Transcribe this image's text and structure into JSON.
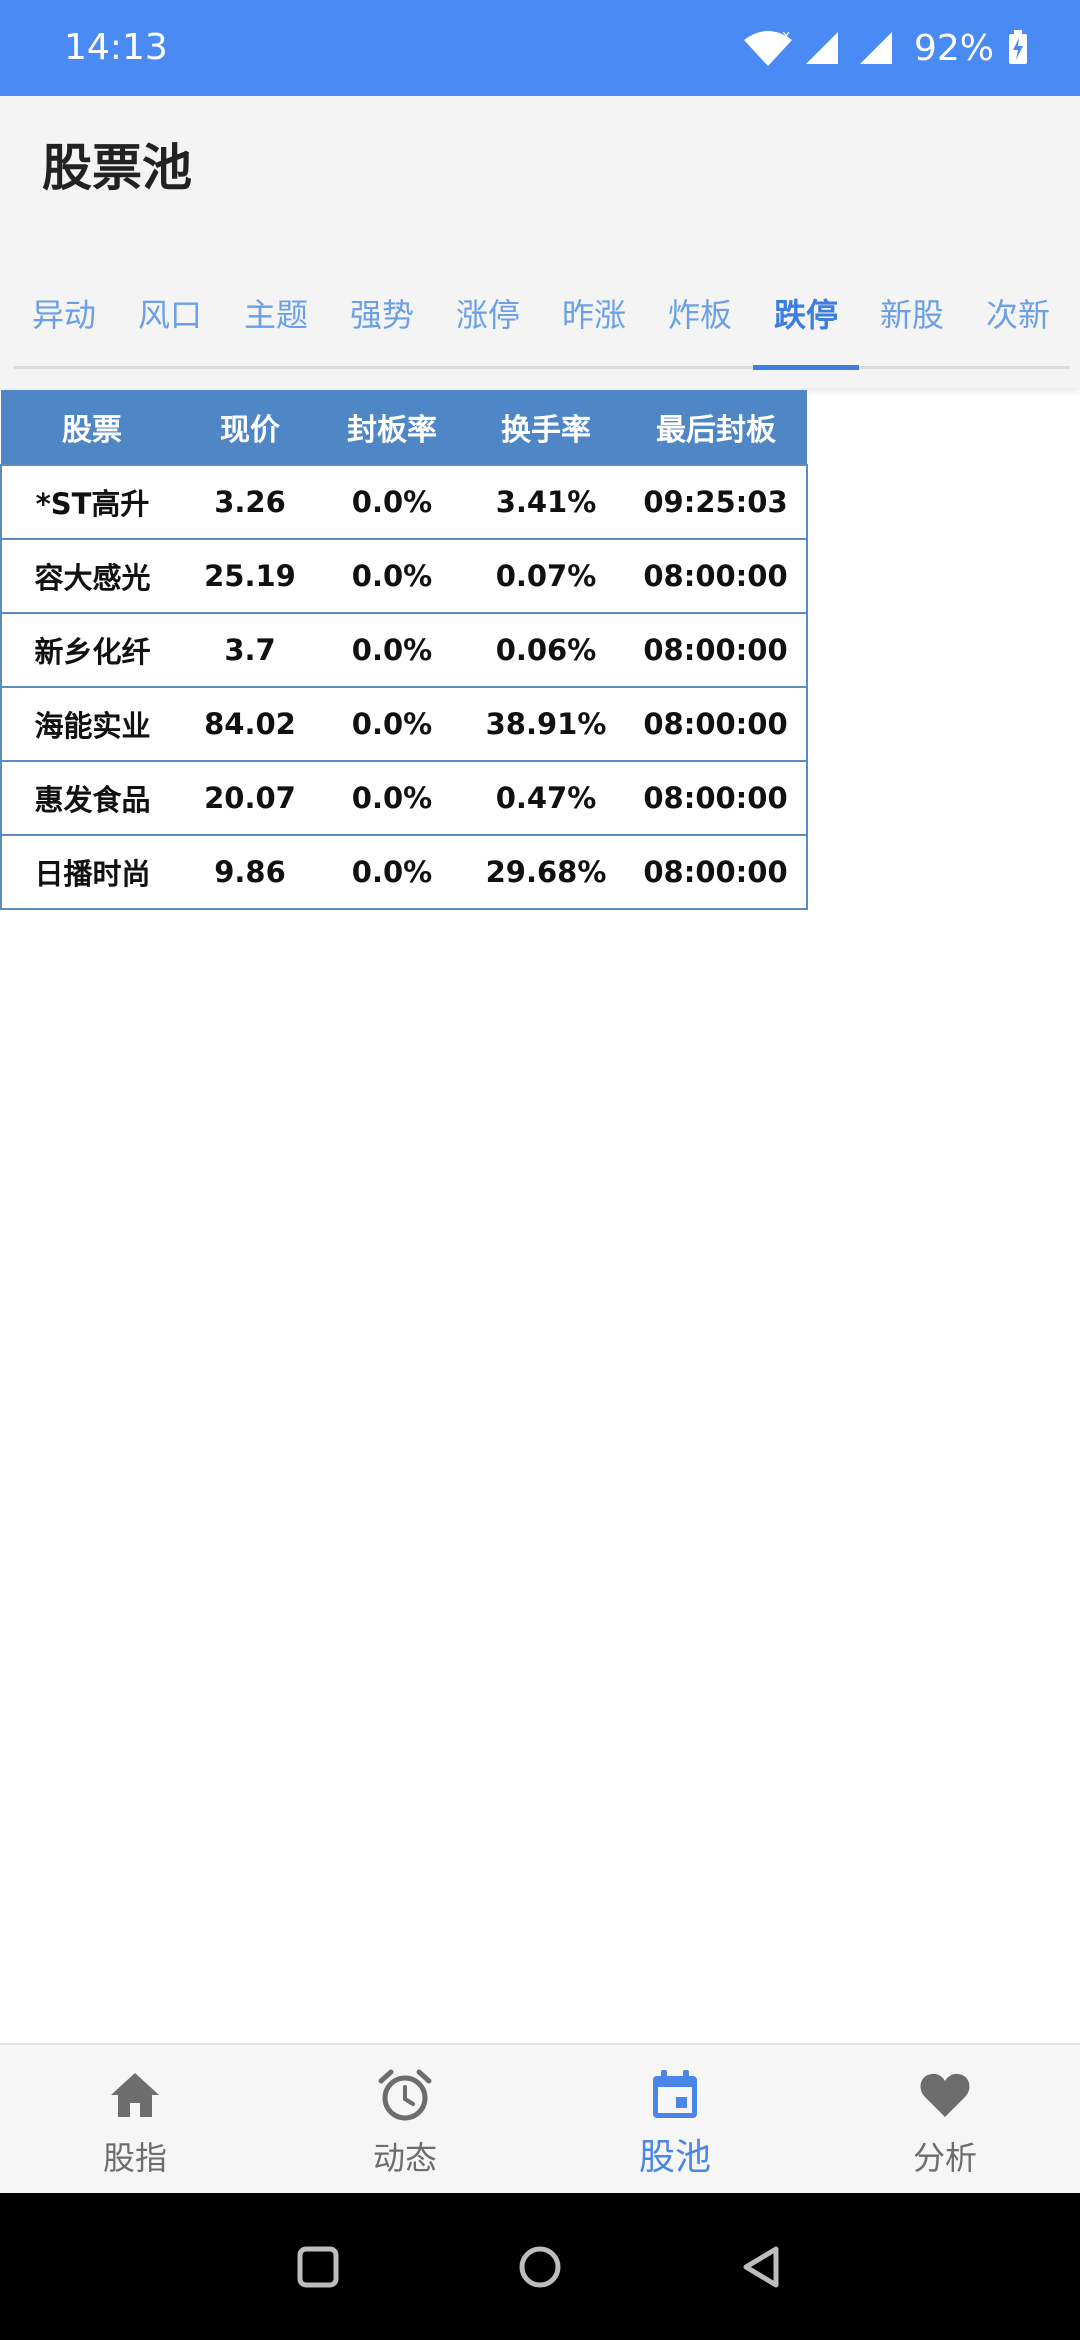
{
  "status_bar": {
    "time": "14:13",
    "battery": "92%"
  },
  "app": {
    "title": "股票池"
  },
  "tabs": [
    {
      "label": "异动",
      "active": false
    },
    {
      "label": "风口",
      "active": false
    },
    {
      "label": "主题",
      "active": false
    },
    {
      "label": "强势",
      "active": false
    },
    {
      "label": "涨停",
      "active": false
    },
    {
      "label": "昨涨",
      "active": false
    },
    {
      "label": "炸板",
      "active": false
    },
    {
      "label": "跌停",
      "active": true
    },
    {
      "label": "新股",
      "active": false
    },
    {
      "label": "次新",
      "active": false
    }
  ],
  "table": {
    "headers": [
      "股票",
      "现价",
      "封板率",
      "换手率",
      "最后封板"
    ],
    "rows": [
      [
        "*ST高升",
        "3.26",
        "0.0%",
        "3.41%",
        "09:25:03"
      ],
      [
        "容大感光",
        "25.19",
        "0.0%",
        "0.07%",
        "08:00:00"
      ],
      [
        "新乡化纤",
        "3.7",
        "0.0%",
        "0.06%",
        "08:00:00"
      ],
      [
        "海能实业",
        "84.02",
        "0.0%",
        "38.91%",
        "08:00:00"
      ],
      [
        "惠发食品",
        "20.07",
        "0.0%",
        "0.47%",
        "08:00:00"
      ],
      [
        "日播时尚",
        "9.86",
        "0.0%",
        "29.68%",
        "08:00:00"
      ]
    ]
  },
  "bottom_nav": [
    {
      "label": "股指",
      "icon": "home-icon",
      "active": false
    },
    {
      "label": "动态",
      "icon": "alarm-clock-icon",
      "active": false
    },
    {
      "label": "股池",
      "icon": "calendar-icon",
      "active": true
    },
    {
      "label": "分析",
      "icon": "heart-icon",
      "active": false
    }
  ],
  "colors": {
    "status_bar": "#4a8af4",
    "accent": "#3d7de0",
    "table_header": "#4f86c6",
    "inactive_nav": "#6d6d6d"
  }
}
